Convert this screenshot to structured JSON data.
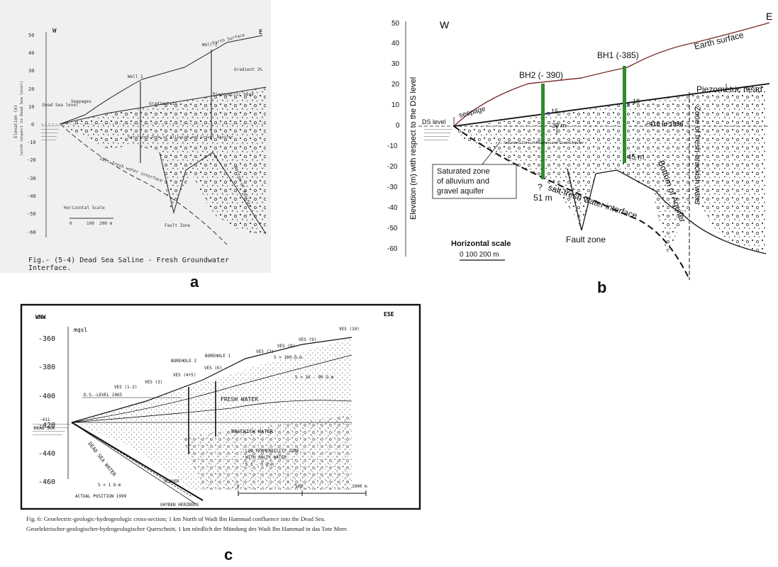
{
  "panel_a": {
    "letter": "a",
    "direction_west": "W",
    "direction_east": "E",
    "y_axis_label_1": "Elevation (m)",
    "y_axis_label_2": "(with respect to Dead Sea level)",
    "y_ticks": [
      "50",
      "40",
      "30",
      "20",
      "10",
      "0",
      "-10",
      "-20",
      "-30",
      "-40",
      "-50",
      "-60"
    ],
    "earth_surface": "Earth Surface",
    "well_1": "Well 1",
    "well_2": "Well 2",
    "dead_sea_level": "Dead Sea level",
    "seepages": "Seepages",
    "gradient_1pct": "Gradient 1%",
    "gradient_2pct": "Gradient 2%",
    "piezometric_head": "Piezometric head",
    "saturated_zone": "Saturated Zone of Alluvium and Gravel Aquifer",
    "fault_zone": "Fault Zone",
    "salt_fresh_interface": "Salt-fresh water interface",
    "bottom_of_aquifer": "Bottom of Aquifer",
    "horizontal_scale": "Horizontal Scale",
    "scale_ticks": [
      "0",
      "100",
      "200 m"
    ],
    "caption": "Fig.- (5-4) Dead Sea Saline - Fresh Groundwater Interface."
  },
  "panel_b": {
    "letter": "b",
    "direction_west": "W",
    "direction_east": "E",
    "y_axis_label": "Elevation (m) with respect to the DS level",
    "y_ticks": [
      "50",
      "40",
      "30",
      "20",
      "10",
      "0",
      "-10",
      "-20",
      "-30",
      "-40",
      "-50",
      "-60"
    ],
    "earth_surface": "Earth surface",
    "bh1": "BH1 (-385)",
    "bh2": "BH2 (- 390)",
    "piezometric_head": "Piezometric head",
    "ds_level": "DS level",
    "seepage": "seepage",
    "label_15": "15",
    "label_18": "18",
    "label_39m": "39 m",
    "label_410": "- 410 in 1996",
    "label_45m": "45 m",
    "label_51m": "51 m",
    "question_mark": "?",
    "saturated_zone_inner": "Saturated Zone of Alluvium and Gravel Aquifer",
    "saturated_zone_box": [
      "Saturated zone",
      "of alluvium and",
      "gravel aquifer"
    ],
    "salt_fresh_interface": "salt-fresh water interface",
    "bottom_of_aquifer": "Bottom of Aquifer",
    "zone_fresh_brackish": "Zone of fresh-brackish water",
    "fault_zone": "Fault zone",
    "horizontal_scale": "Horizontal scale",
    "scale_ticks": "0  100 200 m"
  },
  "panel_c": {
    "letter": "c",
    "direction_west": "WNW",
    "direction_east": "ESE",
    "unit": "mqsl",
    "y_ticks": [
      "-360",
      "-380",
      "-400",
      "-420",
      "-440",
      "-460"
    ],
    "ves_labels": [
      "VES (1-2)",
      "VES (3)",
      "VES (4+5)",
      "VES (6)",
      "VES (7)",
      "VES (8)",
      "VES (9)",
      "VES (10)"
    ],
    "borehole_1": "BOREHOLE 1",
    "borehole_2": "BOREHOLE 2",
    "ds_level_1965": "D.S.-LEVEL 1965",
    "dead_sea": "DEAD SEA",
    "dead_sea_level_value": "-411",
    "fresh_water": "FRESH WATER",
    "brackish_water": "BRACKISH WATER",
    "dead_sea_water": "DEAD SEA WATER",
    "low_permeability": [
      "LOW PERMEABILITY ZONE",
      "WITH SALTY WATER",
      "S 1 - 3 Ω.m"
    ],
    "resistivity_1": "S > 100 Ω.m",
    "resistivity_2": "S = 10 - 90 Ω.m",
    "resistivity_3": "S < 1 Ω.m",
    "actual_position": "ACTUAL POSITION 1999",
    "glover": "GLOVER",
    "ghyben_herzberg": "GHYBEN HERZBERG",
    "scale_ticks": [
      "0",
      "500",
      "1000 m"
    ],
    "caption_line_1": "Fig. 6: Geoelectric-geologic-hydrogeologic cross-section; 1 km North of Wadi Ibn Hammad confluence into the Dead Sea.",
    "caption_line_2": "Geoelektrischer-geologischer-hydrogeologischer Querschnitt, 1 km nördlich der Mündung des Wadi Ibn Hammad in das Tote Meer."
  }
}
